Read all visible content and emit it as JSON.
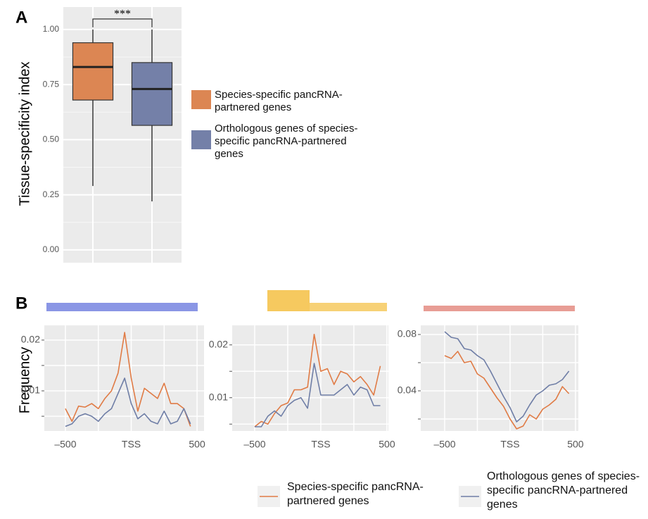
{
  "chart_data": [
    {
      "type": "box",
      "panel": "A",
      "y_label": "Tissue-specificity index",
      "annotation": "***",
      "boxes": [
        {
          "name": "Species-specific pancRNA-partnered genes",
          "color": "#dc8653",
          "min": 0.29,
          "q1": 0.68,
          "median": 0.83,
          "q3": 0.94,
          "max": 1.0
        },
        {
          "name": "Orthologous genes of species-specific pancRNA-partnered genes",
          "color": "#7480a8",
          "min": 0.22,
          "q1": 0.565,
          "median": 0.73,
          "q3": 0.85,
          "max": 1.0
        }
      ],
      "ylim": [
        -0.058,
        1.102
      ],
      "yticks": [
        {
          "value": 0,
          "label": "0.00"
        },
        {
          "value": 0.25,
          "label": "0.25"
        },
        {
          "value": 0.5,
          "label": "0.50"
        },
        {
          "value": 0.75,
          "label": "0.75"
        },
        {
          "value": 1,
          "label": "1.00"
        }
      ],
      "yminor": [
        0.125,
        0.375,
        0.625,
        0.875
      ],
      "grid": true
    },
    {
      "type": "line",
      "panel": "B",
      "y_label": "Frequency",
      "x": [
        -500,
        -450,
        -400,
        -350,
        -300,
        -250,
        -200,
        -150,
        -100,
        -50,
        0,
        50,
        100,
        150,
        200,
        250,
        300,
        350,
        400,
        450
      ],
      "series": [
        {
          "name": "Species-specific pancRNA-partnered genes",
          "color": "#e07b45",
          "values": [
            0.0065,
            0.004,
            0.007,
            0.0068,
            0.0075,
            0.0065,
            0.0085,
            0.01,
            0.0135,
            0.0215,
            0.0125,
            0.006,
            0.0105,
            0.0095,
            0.0085,
            0.0115,
            0.0075,
            0.0075,
            0.0065,
            0.003
          ]
        },
        {
          "name": "Orthologous genes of species-specific pancRNA-partnered genes",
          "color": "#6f7ea6",
          "values": [
            0.003,
            0.0035,
            0.005,
            0.0055,
            0.005,
            0.004,
            0.0055,
            0.0065,
            0.0095,
            0.0125,
            0.0075,
            0.0045,
            0.0055,
            0.004,
            0.0035,
            0.006,
            0.0035,
            0.004,
            0.0065,
            0.0035
          ]
        }
      ],
      "xlim": [
        -660,
        553
      ],
      "xticks": [
        {
          "value": -500,
          "label": "–500"
        },
        {
          "value": 0,
          "label": "TSS"
        },
        500
      ],
      "xminor": [
        -250,
        250
      ],
      "ylim": [
        0.0021,
        0.0229
      ],
      "yticks": [
        0.01,
        0.02
      ],
      "yminor": [
        0.005,
        0.015
      ],
      "grid": true
    },
    {
      "type": "line",
      "x": [
        -500,
        -450,
        -400,
        -350,
        -300,
        -250,
        -200,
        -150,
        -100,
        -50,
        0,
        50,
        100,
        150,
        200,
        250,
        300,
        350,
        400,
        450
      ],
      "series": [
        {
          "color": "#e07b45",
          "values": [
            0.0045,
            0.0055,
            0.005,
            0.007,
            0.0085,
            0.009,
            0.0115,
            0.0115,
            0.012,
            0.022,
            0.015,
            0.0155,
            0.0125,
            0.015,
            0.0145,
            0.013,
            0.014,
            0.0125,
            0.0105,
            0.016
          ]
        },
        {
          "color": "#6f7ea6",
          "values": [
            0.0045,
            0.0045,
            0.0065,
            0.0075,
            0.0065,
            0.0085,
            0.0095,
            0.01,
            0.008,
            0.0165,
            0.0105,
            0.0105,
            0.0105,
            0.0115,
            0.0125,
            0.0105,
            0.012,
            0.0115,
            0.0085,
            0.0085
          ]
        }
      ],
      "xlim": [
        -670,
        511
      ],
      "xticks": [
        {
          "value": -500,
          "label": "–500"
        },
        {
          "value": 0,
          "label": "TSS"
        },
        500
      ],
      "xminor": [
        -250,
        250
      ],
      "ylim": [
        0.0037,
        0.0237
      ],
      "yticks": [
        0.01,
        0.02
      ],
      "yminor": [
        0.005,
        0.015
      ],
      "grid": true
    },
    {
      "type": "line",
      "x": [
        -500,
        -450,
        -400,
        -350,
        -300,
        -250,
        -200,
        -150,
        -100,
        -50,
        0,
        50,
        100,
        150,
        200,
        250,
        300,
        350,
        400,
        450
      ],
      "series": [
        {
          "color": "#e07b45",
          "values": [
            0.065,
            0.063,
            0.068,
            0.06,
            0.061,
            0.052,
            0.049,
            0.042,
            0.035,
            0.029,
            0.02,
            0.013,
            0.015,
            0.023,
            0.02,
            0.027,
            0.03,
            0.034,
            0.043,
            0.038
          ]
        },
        {
          "color": "#6f7ea6",
          "values": [
            0.082,
            0.078,
            0.077,
            0.07,
            0.069,
            0.065,
            0.062,
            0.054,
            0.045,
            0.036,
            0.028,
            0.018,
            0.022,
            0.03,
            0.037,
            0.04,
            0.044,
            0.045,
            0.048,
            0.054
          ]
        }
      ],
      "xlim": [
        -683,
        522
      ],
      "xticks": [
        {
          "value": -500,
          "label": "–500"
        },
        {
          "value": 0,
          "label": "TSS"
        },
        500
      ],
      "xminor": [
        -250,
        250
      ],
      "ylim": [
        0.0115,
        0.0865
      ],
      "yticks": [
        0.04,
        0.08
      ],
      "yminor": [
        0.02,
        0.06
      ],
      "grid": true
    }
  ]
}
